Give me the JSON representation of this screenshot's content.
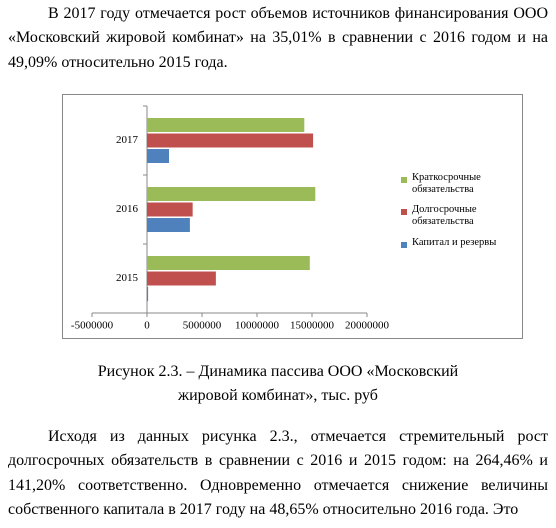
{
  "paragraphs": [
    "В 2017 году отмечается рост объемов источников финансирования ООО «Московский жировой комбинат» на 35,01% в сравнении с 2016 годом и на 49,09% относительно 2015 года.",
    "Исходя из данных рисунка 2.3., отмечается стремительный рост долгосрочных обязательств в сравнении с 2016 и 2015 годом: на 264,46% и 141,20% соответственно. Одновременно отмечается снижение величины собственного капитала в 2017 году на 48,65% относительно 2016 года. Это"
  ],
  "chart": {
    "type": "hbar",
    "categories": [
      "2015",
      "2016",
      "2017"
    ],
    "series": [
      {
        "name": "Краткосрочные обязательства",
        "color": "#9bbb59",
        "values": [
          14800000,
          15300000,
          14300000
        ]
      },
      {
        "name": "Долгосрочные обязательства",
        "color": "#c0504d",
        "values": [
          6260000,
          4150000,
          15100000
        ]
      },
      {
        "name": "Капитал и резервы",
        "color": "#4f81bd",
        "values": [
          100000,
          3900000,
          2000000
        ]
      }
    ],
    "xlim": [
      -5000000,
      20000000
    ],
    "xticks": [
      -5000000,
      0,
      5000000,
      10000000,
      15000000,
      20000000
    ]
  },
  "caption": "Рисунок 2.3. – Динамика пассива ООО «Московский жировой комбинат», тыс. руб"
}
